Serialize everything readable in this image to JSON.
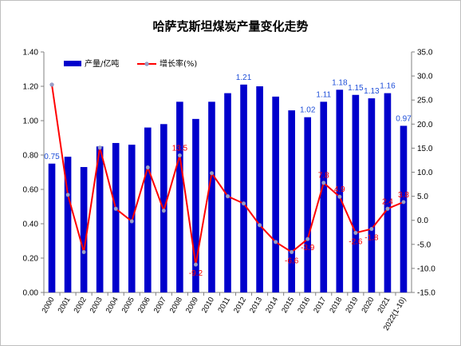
{
  "chart_data": {
    "type": "bar+line",
    "title": "哈萨克斯坦煤炭产量变化走势",
    "categories": [
      "2000",
      "2001",
      "2002",
      "2003",
      "2004",
      "2005",
      "2006",
      "2007",
      "2008",
      "2009",
      "2010",
      "2011",
      "2012",
      "2013",
      "2014",
      "2015",
      "2016",
      "2017",
      "2018",
      "2019",
      "2020",
      "2021",
      "2022(1-10)"
    ],
    "series": [
      {
        "name": "产量/亿吨",
        "type": "bar",
        "axis": "left",
        "color": "#0000cc",
        "values": [
          0.75,
          0.79,
          0.73,
          0.85,
          0.87,
          0.86,
          0.96,
          0.98,
          1.11,
          1.01,
          1.11,
          1.16,
          1.21,
          1.2,
          1.14,
          1.06,
          1.02,
          1.11,
          1.18,
          1.15,
          1.13,
          1.16,
          0.97
        ]
      },
      {
        "name": "增长率(%)",
        "type": "line",
        "axis": "right",
        "color": "#ff0000",
        "values": [
          28.2,
          5.3,
          -6.6,
          15.1,
          2.4,
          -0.2,
          11.0,
          2.0,
          13.5,
          -9.2,
          9.8,
          5.0,
          3.5,
          -1.0,
          -4.5,
          -6.6,
          -3.9,
          7.8,
          4.9,
          -2.6,
          -1.8,
          2.4,
          3.8
        ]
      }
    ],
    "bar_labels": [
      {
        "index": 0,
        "text": "0.75"
      },
      {
        "index": 12,
        "text": "1.21"
      },
      {
        "index": 16,
        "text": "1.02"
      },
      {
        "index": 17,
        "text": "1.11"
      },
      {
        "index": 18,
        "text": "1.18"
      },
      {
        "index": 19,
        "text": "1.15"
      },
      {
        "index": 20,
        "text": "1.13"
      },
      {
        "index": 21,
        "text": "1.16"
      },
      {
        "index": 22,
        "text": "0.97"
      }
    ],
    "line_labels": [
      {
        "index": 8,
        "text": "13.5"
      },
      {
        "index": 9,
        "text": "-9.2"
      },
      {
        "index": 15,
        "text": "-6.6"
      },
      {
        "index": 16,
        "text": "-3.9"
      },
      {
        "index": 17,
        "text": "7.8"
      },
      {
        "index": 18,
        "text": "4.9"
      },
      {
        "index": 19,
        "text": "-2.6"
      },
      {
        "index": 20,
        "text": "-1.8"
      },
      {
        "index": 21,
        "text": "2.4"
      },
      {
        "index": 22,
        "text": "3.8"
      }
    ],
    "ylim_left": [
      0,
      1.4
    ],
    "yticks_left": [
      "0.00",
      "0.20",
      "0.40",
      "0.60",
      "0.80",
      "1.00",
      "1.20",
      "1.40"
    ],
    "ylim_right": [
      -15,
      35
    ],
    "yticks_right": [
      "-15.0",
      "-10.0",
      "-5.0",
      "0.0",
      "5.0",
      "10.0",
      "15.0",
      "20.0",
      "25.0",
      "30.0",
      "35.0"
    ],
    "grid": false,
    "legend": "top-left"
  }
}
